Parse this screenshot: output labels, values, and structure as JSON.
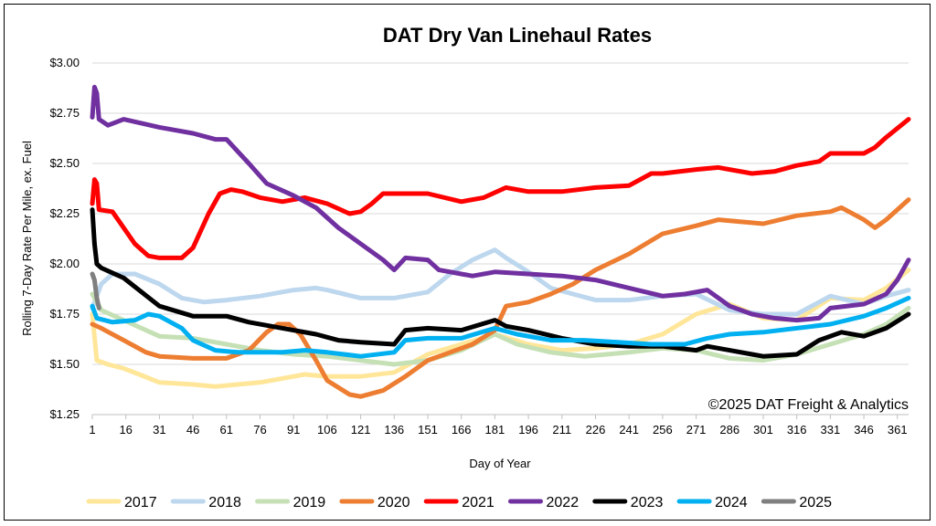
{
  "chart_data": {
    "type": "line",
    "title": "DAT Dry Van Linehaul Rates",
    "xlabel": "Day of Year",
    "ylabel": "Rolling 7-Day Rate Per Mile, ex. Fuel",
    "annotation": "©2025 DAT Freight & Analytics",
    "xlim": [
      1,
      366
    ],
    "ylim": [
      1.25,
      3.0
    ],
    "x_ticks": [
      1,
      16,
      31,
      46,
      61,
      76,
      91,
      106,
      121,
      136,
      151,
      166,
      181,
      196,
      211,
      226,
      241,
      256,
      271,
      286,
      301,
      316,
      331,
      346,
      361
    ],
    "y_ticks": [
      {
        "value": 3.0,
        "label": "$3.00"
      },
      {
        "value": 2.75,
        "label": "$2.75"
      },
      {
        "value": 2.5,
        "label": "$2.50"
      },
      {
        "value": 2.25,
        "label": "$2.25"
      },
      {
        "value": 2.0,
        "label": "$2.00"
      },
      {
        "value": 1.75,
        "label": "$1.75"
      },
      {
        "value": 1.5,
        "label": "$1.50"
      },
      {
        "value": 1.25,
        "label": "$1.25"
      }
    ],
    "grid": "horizontal",
    "legend_position": "bottom",
    "series": [
      {
        "name": "2017",
        "color": "#FFE699",
        "points": [
          [
            1,
            1.75
          ],
          [
            3,
            1.52
          ],
          [
            8,
            1.5
          ],
          [
            15,
            1.48
          ],
          [
            22,
            1.45
          ],
          [
            31,
            1.41
          ],
          [
            46,
            1.4
          ],
          [
            56,
            1.39
          ],
          [
            66,
            1.4
          ],
          [
            76,
            1.41
          ],
          [
            86,
            1.43
          ],
          [
            96,
            1.45
          ],
          [
            106,
            1.44
          ],
          [
            121,
            1.44
          ],
          [
            136,
            1.46
          ],
          [
            151,
            1.55
          ],
          [
            166,
            1.6
          ],
          [
            181,
            1.65
          ],
          [
            196,
            1.6
          ],
          [
            211,
            1.57
          ],
          [
            226,
            1.58
          ],
          [
            241,
            1.6
          ],
          [
            256,
            1.65
          ],
          [
            271,
            1.75
          ],
          [
            286,
            1.8
          ],
          [
            301,
            1.73
          ],
          [
            316,
            1.72
          ],
          [
            331,
            1.83
          ],
          [
            346,
            1.82
          ],
          [
            356,
            1.88
          ],
          [
            366,
            1.97
          ]
        ]
      },
      {
        "name": "2018",
        "color": "#BDD7EE",
        "points": [
          [
            1,
            1.78
          ],
          [
            5,
            1.9
          ],
          [
            10,
            1.95
          ],
          [
            20,
            1.95
          ],
          [
            31,
            1.9
          ],
          [
            41,
            1.83
          ],
          [
            51,
            1.81
          ],
          [
            61,
            1.82
          ],
          [
            76,
            1.84
          ],
          [
            91,
            1.87
          ],
          [
            101,
            1.88
          ],
          [
            106,
            1.87
          ],
          [
            121,
            1.83
          ],
          [
            136,
            1.83
          ],
          [
            151,
            1.86
          ],
          [
            161,
            1.95
          ],
          [
            171,
            2.02
          ],
          [
            181,
            2.07
          ],
          [
            186,
            2.03
          ],
          [
            196,
            1.96
          ],
          [
            206,
            1.88
          ],
          [
            216,
            1.85
          ],
          [
            226,
            1.82
          ],
          [
            241,
            1.82
          ],
          [
            256,
            1.84
          ],
          [
            271,
            1.85
          ],
          [
            286,
            1.77
          ],
          [
            301,
            1.75
          ],
          [
            316,
            1.75
          ],
          [
            331,
            1.84
          ],
          [
            346,
            1.8
          ],
          [
            356,
            1.84
          ],
          [
            366,
            1.87
          ]
        ]
      },
      {
        "name": "2019",
        "color": "#C5E0B4",
        "points": [
          [
            1,
            1.85
          ],
          [
            5,
            1.77
          ],
          [
            15,
            1.72
          ],
          [
            31,
            1.64
          ],
          [
            46,
            1.63
          ],
          [
            61,
            1.6
          ],
          [
            76,
            1.57
          ],
          [
            91,
            1.55
          ],
          [
            106,
            1.54
          ],
          [
            121,
            1.52
          ],
          [
            136,
            1.5
          ],
          [
            151,
            1.52
          ],
          [
            166,
            1.57
          ],
          [
            181,
            1.65
          ],
          [
            191,
            1.6
          ],
          [
            206,
            1.56
          ],
          [
            221,
            1.54
          ],
          [
            241,
            1.56
          ],
          [
            256,
            1.58
          ],
          [
            271,
            1.57
          ],
          [
            286,
            1.53
          ],
          [
            301,
            1.52
          ],
          [
            316,
            1.55
          ],
          [
            331,
            1.6
          ],
          [
            346,
            1.65
          ],
          [
            356,
            1.7
          ],
          [
            366,
            1.78
          ]
        ]
      },
      {
        "name": "2020",
        "color": "#ED7D31",
        "points": [
          [
            1,
            1.7
          ],
          [
            5,
            1.68
          ],
          [
            15,
            1.62
          ],
          [
            25,
            1.56
          ],
          [
            31,
            1.54
          ],
          [
            46,
            1.53
          ],
          [
            61,
            1.53
          ],
          [
            71,
            1.57
          ],
          [
            79,
            1.66
          ],
          [
            84,
            1.7
          ],
          [
            89,
            1.7
          ],
          [
            94,
            1.65
          ],
          [
            101,
            1.52
          ],
          [
            106,
            1.42
          ],
          [
            116,
            1.35
          ],
          [
            121,
            1.34
          ],
          [
            131,
            1.37
          ],
          [
            141,
            1.44
          ],
          [
            151,
            1.52
          ],
          [
            161,
            1.56
          ],
          [
            171,
            1.6
          ],
          [
            181,
            1.67
          ],
          [
            186,
            1.79
          ],
          [
            196,
            1.81
          ],
          [
            206,
            1.85
          ],
          [
            216,
            1.9
          ],
          [
            226,
            1.97
          ],
          [
            241,
            2.05
          ],
          [
            256,
            2.15
          ],
          [
            271,
            2.19
          ],
          [
            281,
            2.22
          ],
          [
            301,
            2.2
          ],
          [
            316,
            2.24
          ],
          [
            331,
            2.26
          ],
          [
            336,
            2.28
          ],
          [
            346,
            2.22
          ],
          [
            351,
            2.18
          ],
          [
            356,
            2.22
          ],
          [
            366,
            2.32
          ]
        ]
      },
      {
        "name": "2021",
        "color": "#FF0000",
        "points": [
          [
            1,
            2.3
          ],
          [
            2,
            2.42
          ],
          [
            3,
            2.4
          ],
          [
            4,
            2.27
          ],
          [
            10,
            2.26
          ],
          [
            20,
            2.1
          ],
          [
            26,
            2.04
          ],
          [
            31,
            2.03
          ],
          [
            41,
            2.03
          ],
          [
            46,
            2.08
          ],
          [
            53,
            2.25
          ],
          [
            58,
            2.35
          ],
          [
            63,
            2.37
          ],
          [
            68,
            2.36
          ],
          [
            76,
            2.33
          ],
          [
            86,
            2.31
          ],
          [
            96,
            2.33
          ],
          [
            106,
            2.3
          ],
          [
            116,
            2.25
          ],
          [
            121,
            2.26
          ],
          [
            126,
            2.3
          ],
          [
            131,
            2.35
          ],
          [
            141,
            2.35
          ],
          [
            151,
            2.35
          ],
          [
            166,
            2.31
          ],
          [
            176,
            2.33
          ],
          [
            186,
            2.38
          ],
          [
            196,
            2.36
          ],
          [
            211,
            2.36
          ],
          [
            226,
            2.38
          ],
          [
            241,
            2.39
          ],
          [
            251,
            2.45
          ],
          [
            256,
            2.45
          ],
          [
            271,
            2.47
          ],
          [
            281,
            2.48
          ],
          [
            296,
            2.45
          ],
          [
            306,
            2.46
          ],
          [
            316,
            2.49
          ],
          [
            326,
            2.51
          ],
          [
            331,
            2.55
          ],
          [
            346,
            2.55
          ],
          [
            351,
            2.58
          ],
          [
            356,
            2.63
          ],
          [
            366,
            2.72
          ]
        ]
      },
      {
        "name": "2022",
        "color": "#7030A0",
        "points": [
          [
            1,
            2.73
          ],
          [
            2,
            2.88
          ],
          [
            3,
            2.85
          ],
          [
            4,
            2.72
          ],
          [
            8,
            2.69
          ],
          [
            15,
            2.72
          ],
          [
            31,
            2.68
          ],
          [
            46,
            2.65
          ],
          [
            56,
            2.62
          ],
          [
            61,
            2.62
          ],
          [
            71,
            2.5
          ],
          [
            79,
            2.4
          ],
          [
            91,
            2.34
          ],
          [
            101,
            2.28
          ],
          [
            111,
            2.18
          ],
          [
            121,
            2.1
          ],
          [
            131,
            2.02
          ],
          [
            136,
            1.97
          ],
          [
            141,
            2.03
          ],
          [
            151,
            2.02
          ],
          [
            156,
            1.97
          ],
          [
            171,
            1.94
          ],
          [
            181,
            1.96
          ],
          [
            196,
            1.95
          ],
          [
            211,
            1.94
          ],
          [
            226,
            1.92
          ],
          [
            241,
            1.88
          ],
          [
            256,
            1.84
          ],
          [
            266,
            1.85
          ],
          [
            276,
            1.87
          ],
          [
            286,
            1.79
          ],
          [
            296,
            1.75
          ],
          [
            306,
            1.73
          ],
          [
            316,
            1.72
          ],
          [
            326,
            1.73
          ],
          [
            331,
            1.78
          ],
          [
            346,
            1.8
          ],
          [
            356,
            1.85
          ],
          [
            361,
            1.92
          ],
          [
            366,
            2.02
          ]
        ]
      },
      {
        "name": "2023",
        "color": "#000000",
        "points": [
          [
            1,
            2.27
          ],
          [
            2,
            2.1
          ],
          [
            3,
            2.0
          ],
          [
            5,
            1.98
          ],
          [
            15,
            1.93
          ],
          [
            31,
            1.79
          ],
          [
            46,
            1.74
          ],
          [
            61,
            1.74
          ],
          [
            71,
            1.71
          ],
          [
            86,
            1.68
          ],
          [
            101,
            1.65
          ],
          [
            111,
            1.62
          ],
          [
            121,
            1.61
          ],
          [
            136,
            1.6
          ],
          [
            141,
            1.67
          ],
          [
            151,
            1.68
          ],
          [
            166,
            1.67
          ],
          [
            181,
            1.72
          ],
          [
            186,
            1.69
          ],
          [
            196,
            1.67
          ],
          [
            211,
            1.63
          ],
          [
            226,
            1.6
          ],
          [
            241,
            1.59
          ],
          [
            256,
            1.59
          ],
          [
            271,
            1.57
          ],
          [
            276,
            1.59
          ],
          [
            286,
            1.57
          ],
          [
            296,
            1.55
          ],
          [
            301,
            1.54
          ],
          [
            316,
            1.55
          ],
          [
            326,
            1.62
          ],
          [
            336,
            1.66
          ],
          [
            346,
            1.64
          ],
          [
            356,
            1.68
          ],
          [
            366,
            1.75
          ]
        ]
      },
      {
        "name": "2024",
        "color": "#00B0F0",
        "points": [
          [
            1,
            1.79
          ],
          [
            3,
            1.73
          ],
          [
            10,
            1.71
          ],
          [
            20,
            1.72
          ],
          [
            26,
            1.75
          ],
          [
            31,
            1.74
          ],
          [
            41,
            1.68
          ],
          [
            46,
            1.62
          ],
          [
            56,
            1.57
          ],
          [
            66,
            1.56
          ],
          [
            76,
            1.56
          ],
          [
            86,
            1.56
          ],
          [
            96,
            1.57
          ],
          [
            106,
            1.56
          ],
          [
            121,
            1.54
          ],
          [
            136,
            1.56
          ],
          [
            141,
            1.62
          ],
          [
            151,
            1.63
          ],
          [
            166,
            1.63
          ],
          [
            181,
            1.68
          ],
          [
            191,
            1.65
          ],
          [
            206,
            1.62
          ],
          [
            221,
            1.62
          ],
          [
            236,
            1.61
          ],
          [
            251,
            1.6
          ],
          [
            266,
            1.6
          ],
          [
            276,
            1.63
          ],
          [
            286,
            1.65
          ],
          [
            301,
            1.66
          ],
          [
            316,
            1.68
          ],
          [
            331,
            1.7
          ],
          [
            346,
            1.74
          ],
          [
            356,
            1.78
          ],
          [
            366,
            1.83
          ]
        ]
      },
      {
        "name": "2025",
        "color": "#7F7F7F",
        "points": [
          [
            1,
            1.95
          ],
          [
            2,
            1.92
          ],
          [
            3,
            1.83
          ],
          [
            4,
            1.78
          ]
        ]
      }
    ]
  }
}
